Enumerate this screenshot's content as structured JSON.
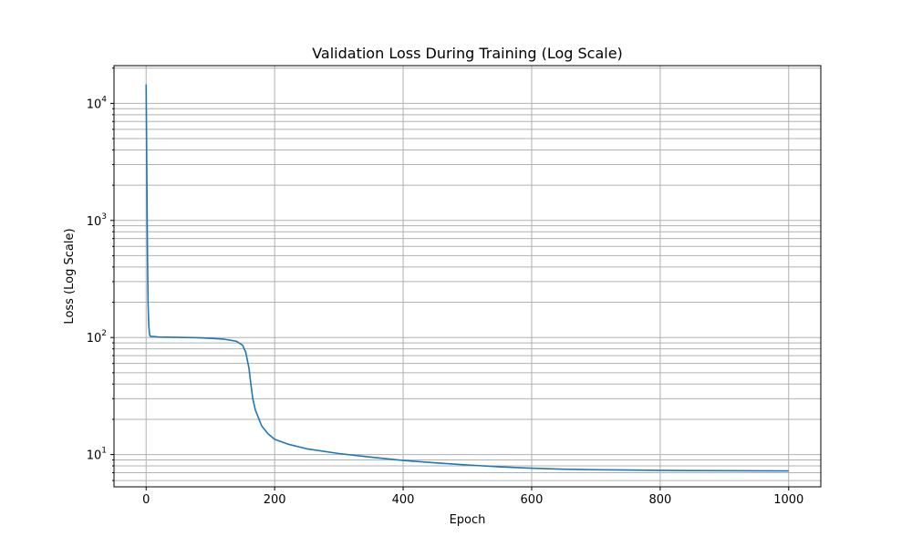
{
  "chart_data": {
    "type": "line",
    "title": "Validation Loss During Training (Log Scale)",
    "xlabel": "Epoch",
    "ylabel": "Loss (Log Scale)",
    "y_scale": "log",
    "xlim": [
      -50,
      1050
    ],
    "ylim": [
      5.3,
      21000
    ],
    "x_ticks": [
      0,
      200,
      400,
      600,
      800,
      1000
    ],
    "y_major_ticks": [
      {
        "value": 10,
        "base": "10",
        "exp": "1"
      },
      {
        "value": 100,
        "base": "10",
        "exp": "2"
      },
      {
        "value": 1000,
        "base": "10",
        "exp": "3"
      },
      {
        "value": 10000,
        "base": "10",
        "exp": "4"
      }
    ],
    "grid": "both (major and minor on log y-axis)",
    "line_color": "#1f77b4",
    "series": [
      {
        "x": [
          0,
          1,
          2,
          3,
          4,
          5,
          6,
          8,
          10,
          20,
          40,
          60,
          80,
          100,
          120,
          140,
          150,
          155,
          160,
          163,
          166,
          170,
          175,
          180,
          190,
          200,
          220,
          250,
          300,
          350,
          400,
          450,
          500,
          550,
          600,
          650,
          700,
          750,
          800,
          850,
          900,
          950,
          1000
        ],
        "y": [
          14500,
          3000,
          600,
          200,
          130,
          110,
          103,
          102,
          102,
          101,
          100.5,
          100,
          99.5,
          98.5,
          97,
          93,
          86,
          75,
          55,
          40,
          30,
          24,
          20.5,
          17.5,
          15,
          13.5,
          12.3,
          11.2,
          10.2,
          9.5,
          8.9,
          8.5,
          8.15,
          7.85,
          7.65,
          7.5,
          7.42,
          7.38,
          7.33,
          7.3,
          7.28,
          7.26,
          7.25
        ]
      }
    ]
  }
}
